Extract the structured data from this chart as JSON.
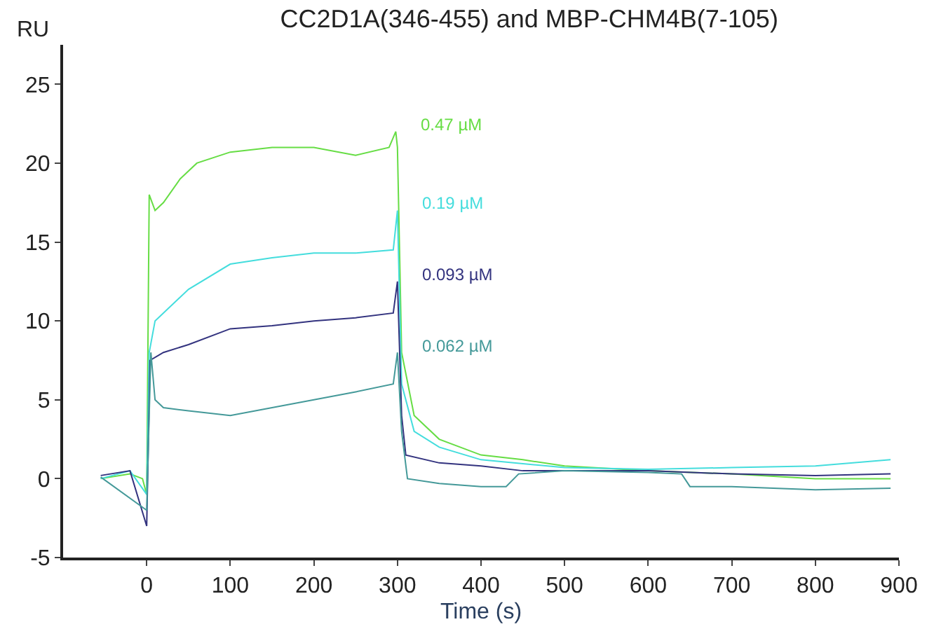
{
  "chart_data": {
    "type": "line",
    "title": "CC2D1A(346-455) and MBP-CHM4B(7-105)",
    "xlabel": "Time (s)",
    "ylabel": "RU",
    "xlim": [
      -100,
      900
    ],
    "xticks": [
      0,
      100,
      200,
      300,
      400,
      500,
      600,
      700,
      800,
      900
    ],
    "ylim": [
      -5,
      27.5
    ],
    "yticks": [
      -5,
      0,
      5,
      10,
      15,
      20,
      25
    ],
    "grid": false,
    "legend": false,
    "marker": "none",
    "line_style": "solid",
    "series": [
      {
        "name": "0.47 µM",
        "color": "#66dd44",
        "x": [
          -55,
          -20,
          -5,
          0,
          3,
          10,
          20,
          40,
          60,
          100,
          150,
          200,
          250,
          290,
          298,
          300,
          305,
          320,
          350,
          400,
          450,
          500,
          600,
          700,
          800,
          890
        ],
        "values": [
          0,
          0.3,
          0,
          -1,
          18,
          17,
          17.5,
          19,
          20,
          20.7,
          21,
          21,
          20.5,
          21,
          22,
          21,
          8,
          4,
          2.5,
          1.5,
          1.2,
          0.8,
          0.5,
          0.3,
          0,
          0
        ]
      },
      {
        "name": "0.19 µM",
        "color": "#44dddd",
        "x": [
          -55,
          -20,
          0,
          3,
          10,
          50,
          100,
          150,
          200,
          250,
          295,
          300,
          305,
          320,
          350,
          400,
          500,
          600,
          700,
          800,
          890
        ],
        "values": [
          0,
          0.5,
          -1,
          8,
          10,
          12,
          13.6,
          14,
          14.3,
          14.3,
          14.5,
          17,
          6,
          3,
          2,
          1.2,
          0.7,
          0.6,
          0.7,
          0.8,
          1.2
        ]
      },
      {
        "name": "0.093 µM",
        "color": "#33337f",
        "x": [
          -55,
          -20,
          0,
          4,
          20,
          50,
          100,
          150,
          200,
          250,
          295,
          300,
          305,
          310,
          350,
          400,
          450,
          500,
          600,
          700,
          800,
          890
        ],
        "values": [
          0.2,
          0.5,
          -3,
          7.5,
          8,
          8.5,
          9.5,
          9.7,
          10,
          10.2,
          10.5,
          12.5,
          4,
          1.5,
          1,
          0.8,
          0.5,
          0.5,
          0.5,
          0.3,
          0.2,
          0.3
        ]
      },
      {
        "name": "0.062 µM",
        "color": "#449999",
        "x": [
          -55,
          0,
          5,
          10,
          20,
          50,
          100,
          150,
          200,
          250,
          295,
          300,
          305,
          312,
          350,
          400,
          430,
          445,
          500,
          600,
          640,
          650,
          700,
          800,
          890
        ],
        "values": [
          0.1,
          -2,
          8,
          5,
          4.5,
          4.3,
          4,
          4.5,
          5,
          5.5,
          6,
          8,
          3,
          0,
          -0.3,
          -0.5,
          -0.5,
          0.3,
          0.5,
          0.4,
          0.3,
          -0.5,
          -0.5,
          -0.7,
          -0.6
        ]
      }
    ]
  }
}
